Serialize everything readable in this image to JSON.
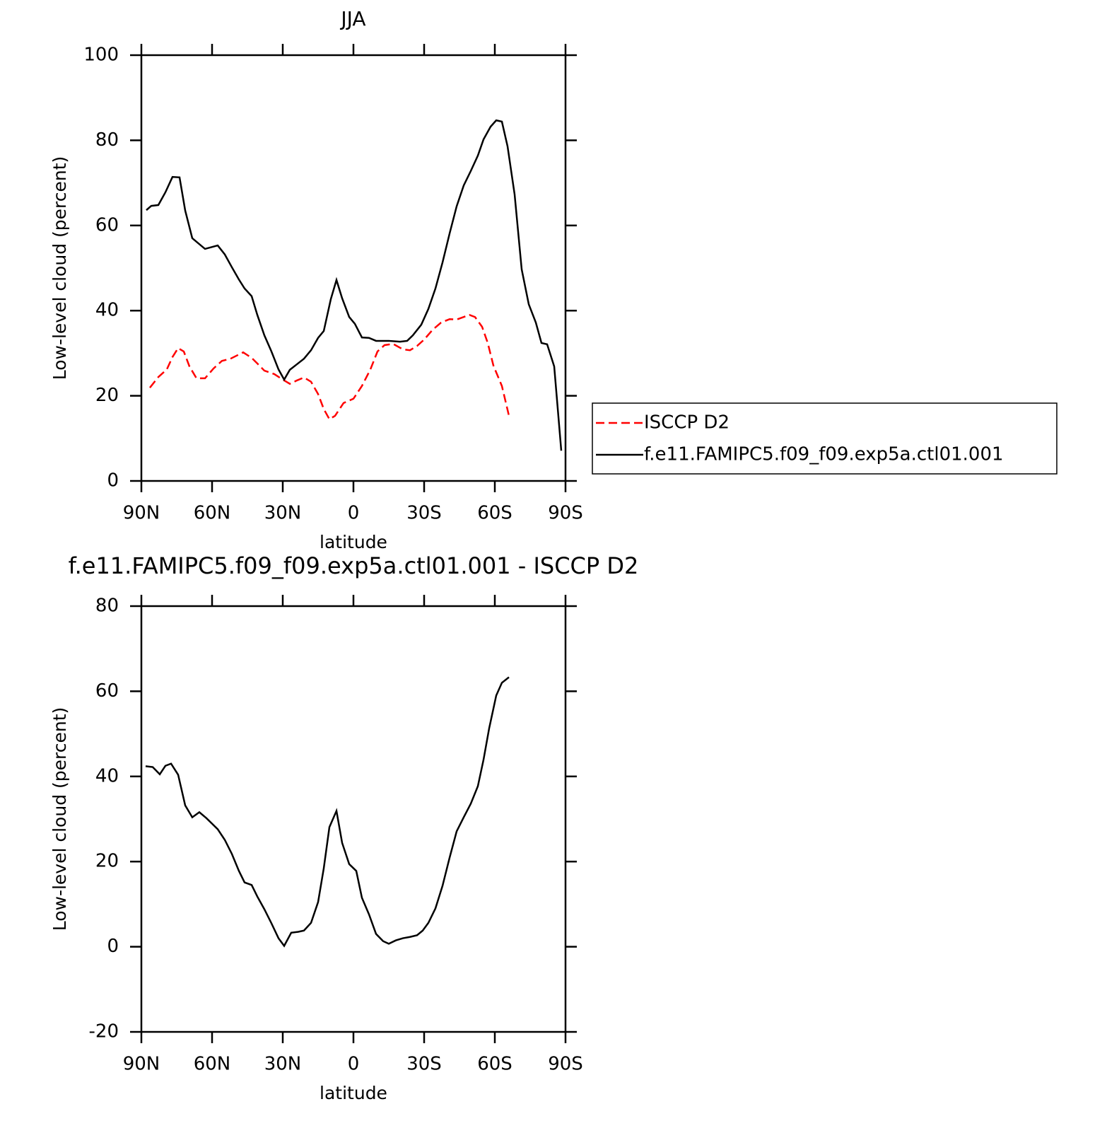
{
  "chart_data": [
    {
      "type": "line",
      "title": "JJA",
      "x_label": "latitude",
      "y_label": "Low-level cloud (percent)",
      "xlim": [
        90,
        -90
      ],
      "ylim": [
        0,
        100
      ],
      "xticks": [
        {
          "value": 90,
          "label": "90N"
        },
        {
          "value": 60,
          "label": "60N"
        },
        {
          "value": 30,
          "label": "30N"
        },
        0,
        {
          "value": -30,
          "label": "30S"
        },
        {
          "value": -60,
          "label": "60S"
        },
        {
          "value": -90,
          "label": "90S"
        }
      ],
      "yticks": [
        0,
        20,
        40,
        60,
        80,
        100
      ],
      "legend": "outside right",
      "series": [
        {
          "name": "ISCCP D2",
          "color": "#ff0000",
          "linestyle": "dashed",
          "x": [
            86.4,
            82.8,
            79.2,
            76.8,
            74.4,
            72,
            69.6,
            66.6,
            63,
            59.4,
            55.8,
            52.2,
            46.8,
            43.2,
            40.8,
            37.8,
            33.6,
            30,
            27,
            24,
            21,
            18,
            15,
            12.6,
            10.2,
            7.8,
            4.2,
            0,
            -3.6,
            -7.2,
            -10.2,
            -13.2,
            -16.8,
            -21,
            -24,
            -27,
            -30,
            -33.6,
            -37.2,
            -40.8,
            -43.8,
            -46.8,
            -49.2,
            -51.6,
            -54.6,
            -57,
            -59.4,
            -63,
            -66
          ],
          "values": [
            21.9,
            24.4,
            26.2,
            29.1,
            31.2,
            30.4,
            26.9,
            24.1,
            24.1,
            26.4,
            28.2,
            28.7,
            30.2,
            28.9,
            27.6,
            25.9,
            25.1,
            23.8,
            22.8,
            23.6,
            24.3,
            23.3,
            20.4,
            16.9,
            14.5,
            15.3,
            18.3,
            19.3,
            22.3,
            26.2,
            30.4,
            31.9,
            32.2,
            30.9,
            30.7,
            31.7,
            33.2,
            35.5,
            37.2,
            38,
            37.9,
            38.5,
            39,
            38.5,
            36.2,
            32.4,
            27.1,
            22.3,
            15.3
          ]
        },
        {
          "name": "f.e11.FAMIPC5.f09_f09.exp5a.ctl01.001",
          "color": "#000000",
          "linestyle": "solid",
          "x": [
            87.9,
            85.8,
            82.8,
            79.8,
            76.8,
            73.8,
            71.4,
            68.4,
            63,
            57.6,
            54.6,
            51.6,
            48.6,
            46.2,
            43.2,
            40.8,
            37.8,
            34.8,
            31.8,
            29.4,
            27,
            24,
            21,
            18,
            15,
            12.6,
            9.6,
            7.2,
            4.8,
            1.8,
            -0.6,
            -3.6,
            -6.6,
            -9.6,
            -15,
            -19.8,
            -22.8,
            -25.2,
            -28.8,
            -31.8,
            -34.8,
            -37.8,
            -40.8,
            -43.8,
            -46.8,
            -49.8,
            -52.8,
            -55.2,
            -58.2,
            -60.6,
            -63,
            -65.4,
            -68.4,
            -71.4,
            -74.4,
            -77.4,
            -79.8,
            -82.2,
            -85.2,
            -88.2
          ],
          "values": [
            63.6,
            64.6,
            64.8,
            67.8,
            71.4,
            71.3,
            63.5,
            57,
            54.5,
            55.3,
            53.2,
            50.2,
            47.3,
            45.2,
            43.4,
            39,
            34.2,
            30.4,
            26.2,
            23.8,
            26.1,
            27.4,
            28.7,
            30.7,
            33.6,
            35.2,
            42.7,
            47.2,
            42.9,
            38.5,
            36.9,
            33.7,
            33.6,
            32.9,
            32.9,
            32.7,
            32.9,
            34.2,
            36.7,
            40.4,
            45.2,
            51.3,
            58.1,
            64.5,
            69.4,
            72.8,
            76.4,
            80.2,
            83.2,
            84.7,
            84.4,
            78.6,
            67.3,
            49.7,
            41.5,
            37.2,
            32.4,
            32.1,
            26.9,
            7.1
          ]
        }
      ]
    },
    {
      "type": "line",
      "title": "f.e11.FAMIPC5.f09_f09.exp5a.ctl01.001 - ISCCP D2",
      "x_label": "latitude",
      "y_label": "Low-level cloud (percent)",
      "xlim": [
        90,
        -90
      ],
      "ylim": [
        -20,
        80
      ],
      "xticks": [
        {
          "value": 90,
          "label": "90N"
        },
        {
          "value": 60,
          "label": "60N"
        },
        {
          "value": 30,
          "label": "30N"
        },
        0,
        {
          "value": -30,
          "label": "30S"
        },
        {
          "value": -60,
          "label": "60S"
        },
        {
          "value": -90,
          "label": "90S"
        }
      ],
      "yticks": [
        -20,
        0,
        20,
        40,
        60,
        80
      ],
      "series": [
        {
          "color": "#000000",
          "linestyle": "solid",
          "x": [
            88.2,
            85.2,
            82.2,
            79.8,
            77.4,
            74.4,
            71.4,
            68.4,
            65.4,
            62.4,
            60,
            57.6,
            54.6,
            51.6,
            48.6,
            46.2,
            43.2,
            40.8,
            37.8,
            34.8,
            31.8,
            29.4,
            26.4,
            23.4,
            21,
            18,
            15,
            12.6,
            10.2,
            7.2,
            4.8,
            1.8,
            -1.2,
            -3.6,
            -6.6,
            -9.6,
            -12.6,
            -15,
            -18,
            -21,
            -24,
            -27,
            -29.4,
            -31.8,
            -34.8,
            -37.8,
            -40.8,
            -43.8,
            -46.8,
            -49.8,
            -52.8,
            -55.2,
            -57.6,
            -60.6,
            -63,
            -66
          ],
          "values": [
            42.4,
            42.2,
            40.5,
            42.5,
            43,
            40.4,
            33.2,
            30.4,
            31.6,
            30.2,
            28.9,
            27.6,
            25.1,
            21.8,
            17.8,
            15.1,
            14.5,
            11.8,
            8.8,
            5.5,
            2,
            0.2,
            3.3,
            3.5,
            3.8,
            5.6,
            10.5,
            18.4,
            28.1,
            31.9,
            24.4,
            19.4,
            17.8,
            11.5,
            7.6,
            3,
            1.3,
            0.7,
            1.5,
            2,
            2.3,
            2.7,
            3.8,
            5.6,
            9,
            14.3,
            20.9,
            27.1,
            30.4,
            33.6,
            37.7,
            43.9,
            51.3,
            59,
            62,
            63.3
          ]
        }
      ]
    }
  ]
}
